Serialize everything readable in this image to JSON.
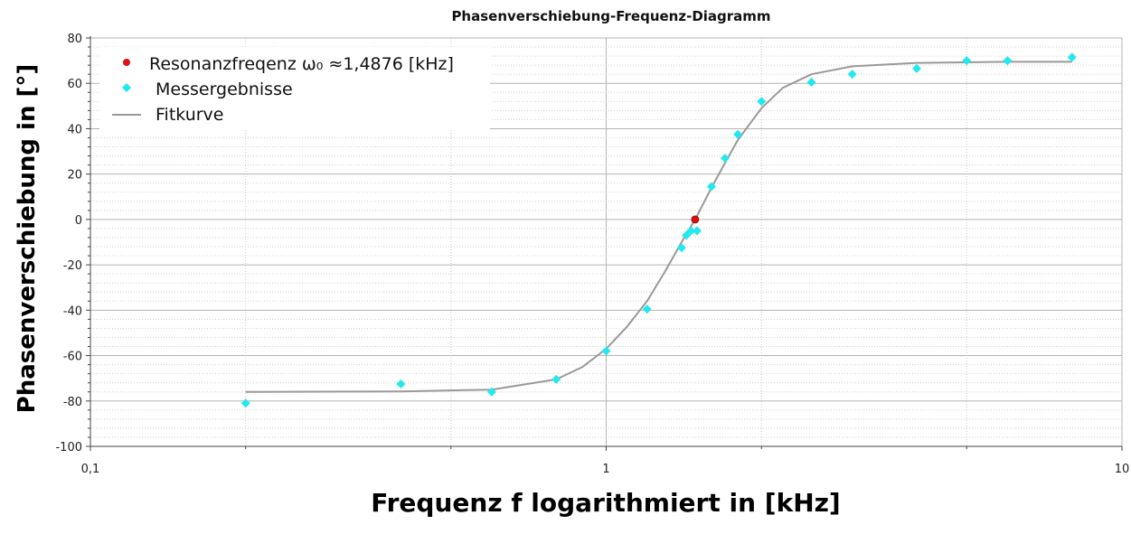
{
  "chart_data": {
    "type": "scatter",
    "title": "Phasenverschiebung-Frequenz-Diagramm",
    "xlabel": "Frequenz f logarithmiert in [kHz]",
    "ylabel": "Phasenverschiebung in [°]",
    "x_scale": "log",
    "xlim": [
      0.1,
      10
    ],
    "ylim": [
      -100,
      80
    ],
    "x_tick_labels": [
      "0,1",
      "1",
      "10"
    ],
    "y_ticks": [
      -100,
      -80,
      -60,
      -40,
      -20,
      0,
      20,
      40,
      60,
      80
    ],
    "grid": true,
    "legend_position": "top-left",
    "colors": {
      "resonance": "#dd1111",
      "measurements": "#22e8f0",
      "fit": "#999999"
    },
    "series": [
      {
        "name": "Resonanzfreqenz ω₀ ≈1,4876 [kHz]",
        "kind": "point",
        "x": [
          1.4876
        ],
        "y": [
          0
        ]
      },
      {
        "name": "Messergebnisse",
        "kind": "point",
        "x": [
          0.2,
          0.4,
          0.6,
          0.8,
          1.0,
          1.2,
          1.4,
          1.43,
          1.46,
          1.5,
          1.6,
          1.7,
          1.8,
          2.0,
          2.5,
          3.0,
          4.0,
          5.0,
          6.0,
          8.0
        ],
        "y": [
          -81,
          -72.5,
          -76,
          -70.5,
          -58,
          -39.5,
          -12.5,
          -7,
          -5,
          -5,
          14.5,
          27,
          37.5,
          52,
          60.5,
          64,
          66.5,
          70,
          70,
          71.5
        ]
      },
      {
        "name": "Fitkurve",
        "kind": "line",
        "x": [
          0.2,
          0.4,
          0.6,
          0.8,
          0.9,
          1.0,
          1.1,
          1.2,
          1.3,
          1.4,
          1.4876,
          1.6,
          1.7,
          1.8,
          2.0,
          2.2,
          2.5,
          3.0,
          4.0,
          6.0,
          8.0
        ],
        "y": [
          -76,
          -75.8,
          -75,
          -70.5,
          -65,
          -57,
          -47,
          -36,
          -23,
          -10,
          0,
          14,
          25,
          35,
          49,
          58,
          64,
          67.5,
          69,
          69.5,
          69.5
        ]
      }
    ]
  }
}
